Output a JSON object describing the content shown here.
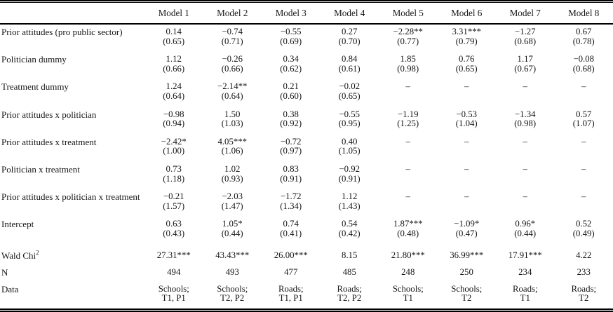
{
  "table": {
    "row_label_header": "",
    "columns": [
      "Model 1",
      "Model 2",
      "Model 3",
      "Model 4",
      "Model 5",
      "Model 6",
      "Model 7",
      "Model 8"
    ],
    "coef_rows": [
      {
        "label": "Prior attitudes (pro public sector)",
        "coefs": [
          "0.14",
          "−0.74",
          "−0.55",
          "0.27",
          "−2.28**",
          "3.31***",
          "−1.27",
          "0.67"
        ],
        "ses": [
          "(0.65)",
          "(0.71)",
          "(0.69)",
          "(0.70)",
          "(0.77)",
          "(0.79)",
          "(0.68)",
          "(0.78)"
        ]
      },
      {
        "label": "Politician dummy",
        "coefs": [
          "1.12",
          "−0.26",
          "0.34",
          "0.84",
          "1.85",
          "0.76",
          "1.17",
          "−0.08"
        ],
        "ses": [
          "(0.66)",
          "(0.66)",
          "(0.62)",
          "(0.61)",
          "(0.98)",
          "(0.65)",
          "(0.67)",
          "(0.68)"
        ]
      },
      {
        "label": "Treatment dummy",
        "coefs": [
          "1.24",
          "−2.14**",
          "0.21",
          "−0.02",
          "–",
          "–",
          "–",
          "–"
        ],
        "ses": [
          "(0.64)",
          "(0.64)",
          "(0.60)",
          "(0.65)",
          "",
          "",
          "",
          ""
        ]
      },
      {
        "label": "Prior attitudes x politician",
        "coefs": [
          "−0.98",
          "1.50",
          "0.38",
          "−0.55",
          "−1.19",
          "−0.53",
          "−1.34",
          "0.57"
        ],
        "ses": [
          "(0.94)",
          "(1.03)",
          "(0.92)",
          "(0.95)",
          "(1.25)",
          "(1.04)",
          "(0.98)",
          "(1.07)"
        ]
      },
      {
        "label": "Prior attitudes x treatment",
        "coefs": [
          "−2.42*",
          "4.05***",
          "−0.72",
          "0.40",
          "–",
          "–",
          "–",
          "–"
        ],
        "ses": [
          "(1.00)",
          "(1.06)",
          "(0.97)",
          "(1.05)",
          "",
          "",
          "",
          ""
        ]
      },
      {
        "label": "Politician x treatment",
        "coefs": [
          "0.73",
          "1.02",
          "0.83",
          "−0.92",
          "–",
          "–",
          "–",
          "–"
        ],
        "ses": [
          "(1.18)",
          "(0.93)",
          "(0.91)",
          "(0.91)",
          "",
          "",
          "",
          ""
        ]
      },
      {
        "label": "Prior attitudes x politician x treatment",
        "coefs": [
          "−0.21",
          "−2.03",
          "−1.72",
          "1.12",
          "–",
          "–",
          "–",
          "–"
        ],
        "ses": [
          "(1.57)",
          "(1.47)",
          "(1.34)",
          "(1.43)",
          "",
          "",
          "",
          ""
        ]
      },
      {
        "label": "Intercept",
        "coefs": [
          "0.63",
          "1.05*",
          "0.74",
          "0.54",
          "1.87***",
          "−1.09*",
          "0.96*",
          "0.52"
        ],
        "ses": [
          "(0.43)",
          "(0.44)",
          "(0.41)",
          "(0.42)",
          "(0.48)",
          "(0.47)",
          "(0.44)",
          "(0.49)"
        ]
      }
    ],
    "stat_rows": [
      {
        "label": "Wald Chi",
        "label_sup": "2",
        "values": [
          "27.31***",
          "43.43***",
          "26.00***",
          "8.15",
          "21.80***",
          "36.99***",
          "17.91***",
          "4.22"
        ]
      },
      {
        "label": "N",
        "label_sup": "",
        "values": [
          "494",
          "493",
          "477",
          "485",
          "248",
          "250",
          "234",
          "233"
        ]
      },
      {
        "label": "Data",
        "label_sup": "",
        "values": [
          [
            "Schools;",
            "T1, P1"
          ],
          [
            "Schools;",
            "T2, P2"
          ],
          [
            "Roads;",
            "T1, P1"
          ],
          [
            "Roads;",
            "T2, P2"
          ],
          [
            "Schools;",
            "T1"
          ],
          [
            "Schools;",
            "T2"
          ],
          [
            "Roads;",
            "T1"
          ],
          [
            "Roads;",
            "T2"
          ]
        ]
      }
    ]
  },
  "colors": {
    "text": "#161616",
    "rule": "#000000",
    "background": "#ffffff"
  }
}
